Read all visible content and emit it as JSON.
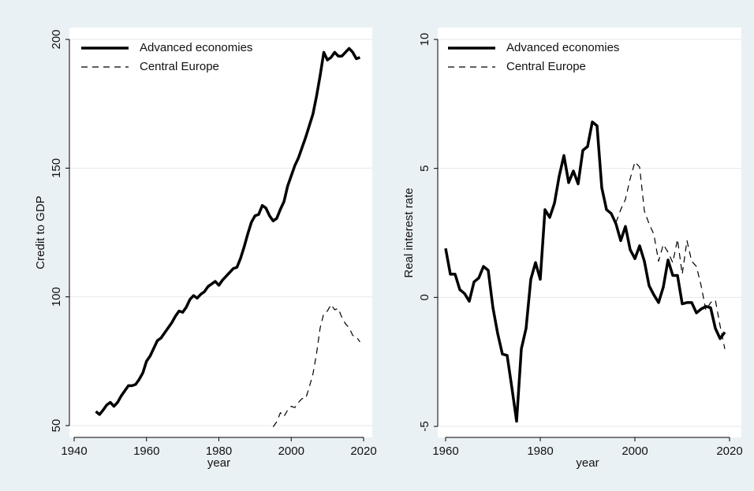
{
  "chart_data": [
    {
      "type": "line",
      "x_label": "year",
      "y_label": "Credit to GDP",
      "x": [
        1946,
        1947,
        1948,
        1949,
        1950,
        1951,
        1952,
        1953,
        1954,
        1955,
        1956,
        1957,
        1958,
        1959,
        1960,
        1961,
        1962,
        1963,
        1964,
        1965,
        1966,
        1967,
        1968,
        1969,
        1970,
        1971,
        1972,
        1973,
        1974,
        1975,
        1976,
        1977,
        1978,
        1979,
        1980,
        1981,
        1982,
        1983,
        1984,
        1985,
        1986,
        1987,
        1988,
        1989,
        1990,
        1991,
        1992,
        1993,
        1994,
        1995,
        1996,
        1997,
        1998,
        1999,
        2000,
        2001,
        2002,
        2003,
        2004,
        2005,
        2006,
        2007,
        2008,
        2009,
        2010,
        2011,
        2012,
        2013,
        2014,
        2015,
        2016,
        2017,
        2018,
        2019
      ],
      "series": [
        {
          "name": "Advanced economies",
          "color": "#000000",
          "line_style": "solid",
          "values": [
            55.5,
            54.3,
            56,
            58,
            59,
            57.5,
            59,
            61.5,
            63.5,
            65.5,
            65.5,
            66,
            68,
            70.5,
            75,
            77,
            80,
            83,
            84,
            86,
            88,
            90,
            92.5,
            94.5,
            94,
            96,
            99,
            100.5,
            99.5,
            101,
            102,
            104,
            105,
            106,
            104.5,
            106.5,
            108,
            109.5,
            111,
            111.5,
            115,
            119.5,
            124.5,
            129,
            131.5,
            132,
            135.5,
            134.5,
            131.5,
            129.5,
            130.5,
            134,
            137,
            143,
            147,
            151,
            154,
            158,
            162,
            166.5,
            171,
            178,
            186,
            195,
            192,
            193,
            195,
            193.5,
            193.5,
            195,
            196.5,
            195,
            192.5,
            193
          ]
        },
        {
          "name": "Central Europe",
          "color": "#000000",
          "line_style": "dashed",
          "values": [
            null,
            null,
            null,
            null,
            null,
            null,
            null,
            null,
            null,
            null,
            null,
            null,
            null,
            null,
            null,
            null,
            null,
            null,
            null,
            null,
            null,
            null,
            null,
            null,
            null,
            null,
            null,
            null,
            null,
            null,
            null,
            null,
            null,
            null,
            null,
            null,
            null,
            null,
            null,
            null,
            null,
            null,
            null,
            null,
            null,
            null,
            null,
            null,
            null,
            49.5,
            51.5,
            55,
            53.5,
            56,
            57.5,
            57,
            59,
            60.5,
            60.5,
            65,
            70,
            78,
            88,
            93.5,
            94.5,
            97,
            95,
            95.5,
            92,
            89.5,
            88,
            85,
            84.5,
            82.5
          ]
        }
      ],
      "xlim": [
        1940,
        2020
      ],
      "xticks": [
        1940,
        1960,
        1980,
        2000,
        2020
      ],
      "ylim": [
        50,
        200
      ],
      "yticks": [
        50,
        100,
        150,
        200
      ],
      "grid": true,
      "legend": "upper-left"
    },
    {
      "type": "line",
      "x_label": "year",
      "y_label": "Real interest rate",
      "x": [
        1960,
        1961,
        1962,
        1963,
        1964,
        1965,
        1966,
        1967,
        1968,
        1969,
        1970,
        1971,
        1972,
        1973,
        1974,
        1975,
        1976,
        1977,
        1978,
        1979,
        1980,
        1981,
        1982,
        1983,
        1984,
        1985,
        1986,
        1987,
        1988,
        1989,
        1990,
        1991,
        1992,
        1993,
        1994,
        1995,
        1996,
        1997,
        1998,
        1999,
        2000,
        2001,
        2002,
        2003,
        2004,
        2005,
        2006,
        2007,
        2008,
        2009,
        2010,
        2011,
        2012,
        2013,
        2014,
        2015,
        2016,
        2017,
        2018,
        2019
      ],
      "series": [
        {
          "name": "Advanced economies",
          "color": "#000000",
          "line_style": "solid",
          "values": [
            1.9,
            0.9,
            0.9,
            0.3,
            0.15,
            -0.15,
            0.6,
            0.75,
            1.2,
            1.05,
            -0.4,
            -1.4,
            -2.2,
            -2.25,
            -3.5,
            -4.8,
            -2.0,
            -1.2,
            0.7,
            1.35,
            0.7,
            3.4,
            3.1,
            3.65,
            4.7,
            5.5,
            4.45,
            4.9,
            4.4,
            5.7,
            5.85,
            6.8,
            6.65,
            4.25,
            3.4,
            3.25,
            2.85,
            2.2,
            2.75,
            1.85,
            1.5,
            2.0,
            1.4,
            0.45,
            0.1,
            -0.2,
            0.4,
            1.45,
            0.85,
            0.85,
            -0.25,
            -0.2,
            -0.2,
            -0.6,
            -0.45,
            -0.35,
            -0.4,
            -1.2,
            -1.6,
            -1.35
          ]
        },
        {
          "name": "Central Europe",
          "color": "#000000",
          "line_style": "dashed",
          "values": [
            null,
            null,
            null,
            null,
            null,
            null,
            null,
            null,
            null,
            null,
            null,
            null,
            null,
            null,
            null,
            null,
            null,
            null,
            null,
            null,
            null,
            null,
            null,
            null,
            null,
            null,
            null,
            null,
            null,
            null,
            null,
            null,
            null,
            null,
            null,
            null,
            2.9,
            3.4,
            3.8,
            4.6,
            5.25,
            5.05,
            3.35,
            2.85,
            2.45,
            1.4,
            2.05,
            1.75,
            1.35,
            2.25,
            0.9,
            2.2,
            1.4,
            1.2,
            0.45,
            -0.5,
            -0.2,
            -0.1,
            -1.1,
            -2.0
          ]
        }
      ],
      "xlim": [
        1960,
        2020
      ],
      "xticks": [
        1960,
        1980,
        2000,
        2020
      ],
      "ylim": [
        -5,
        10
      ],
      "yticks": [
        -5,
        0,
        5,
        10
      ],
      "grid": true,
      "legend": "upper-left"
    }
  ]
}
